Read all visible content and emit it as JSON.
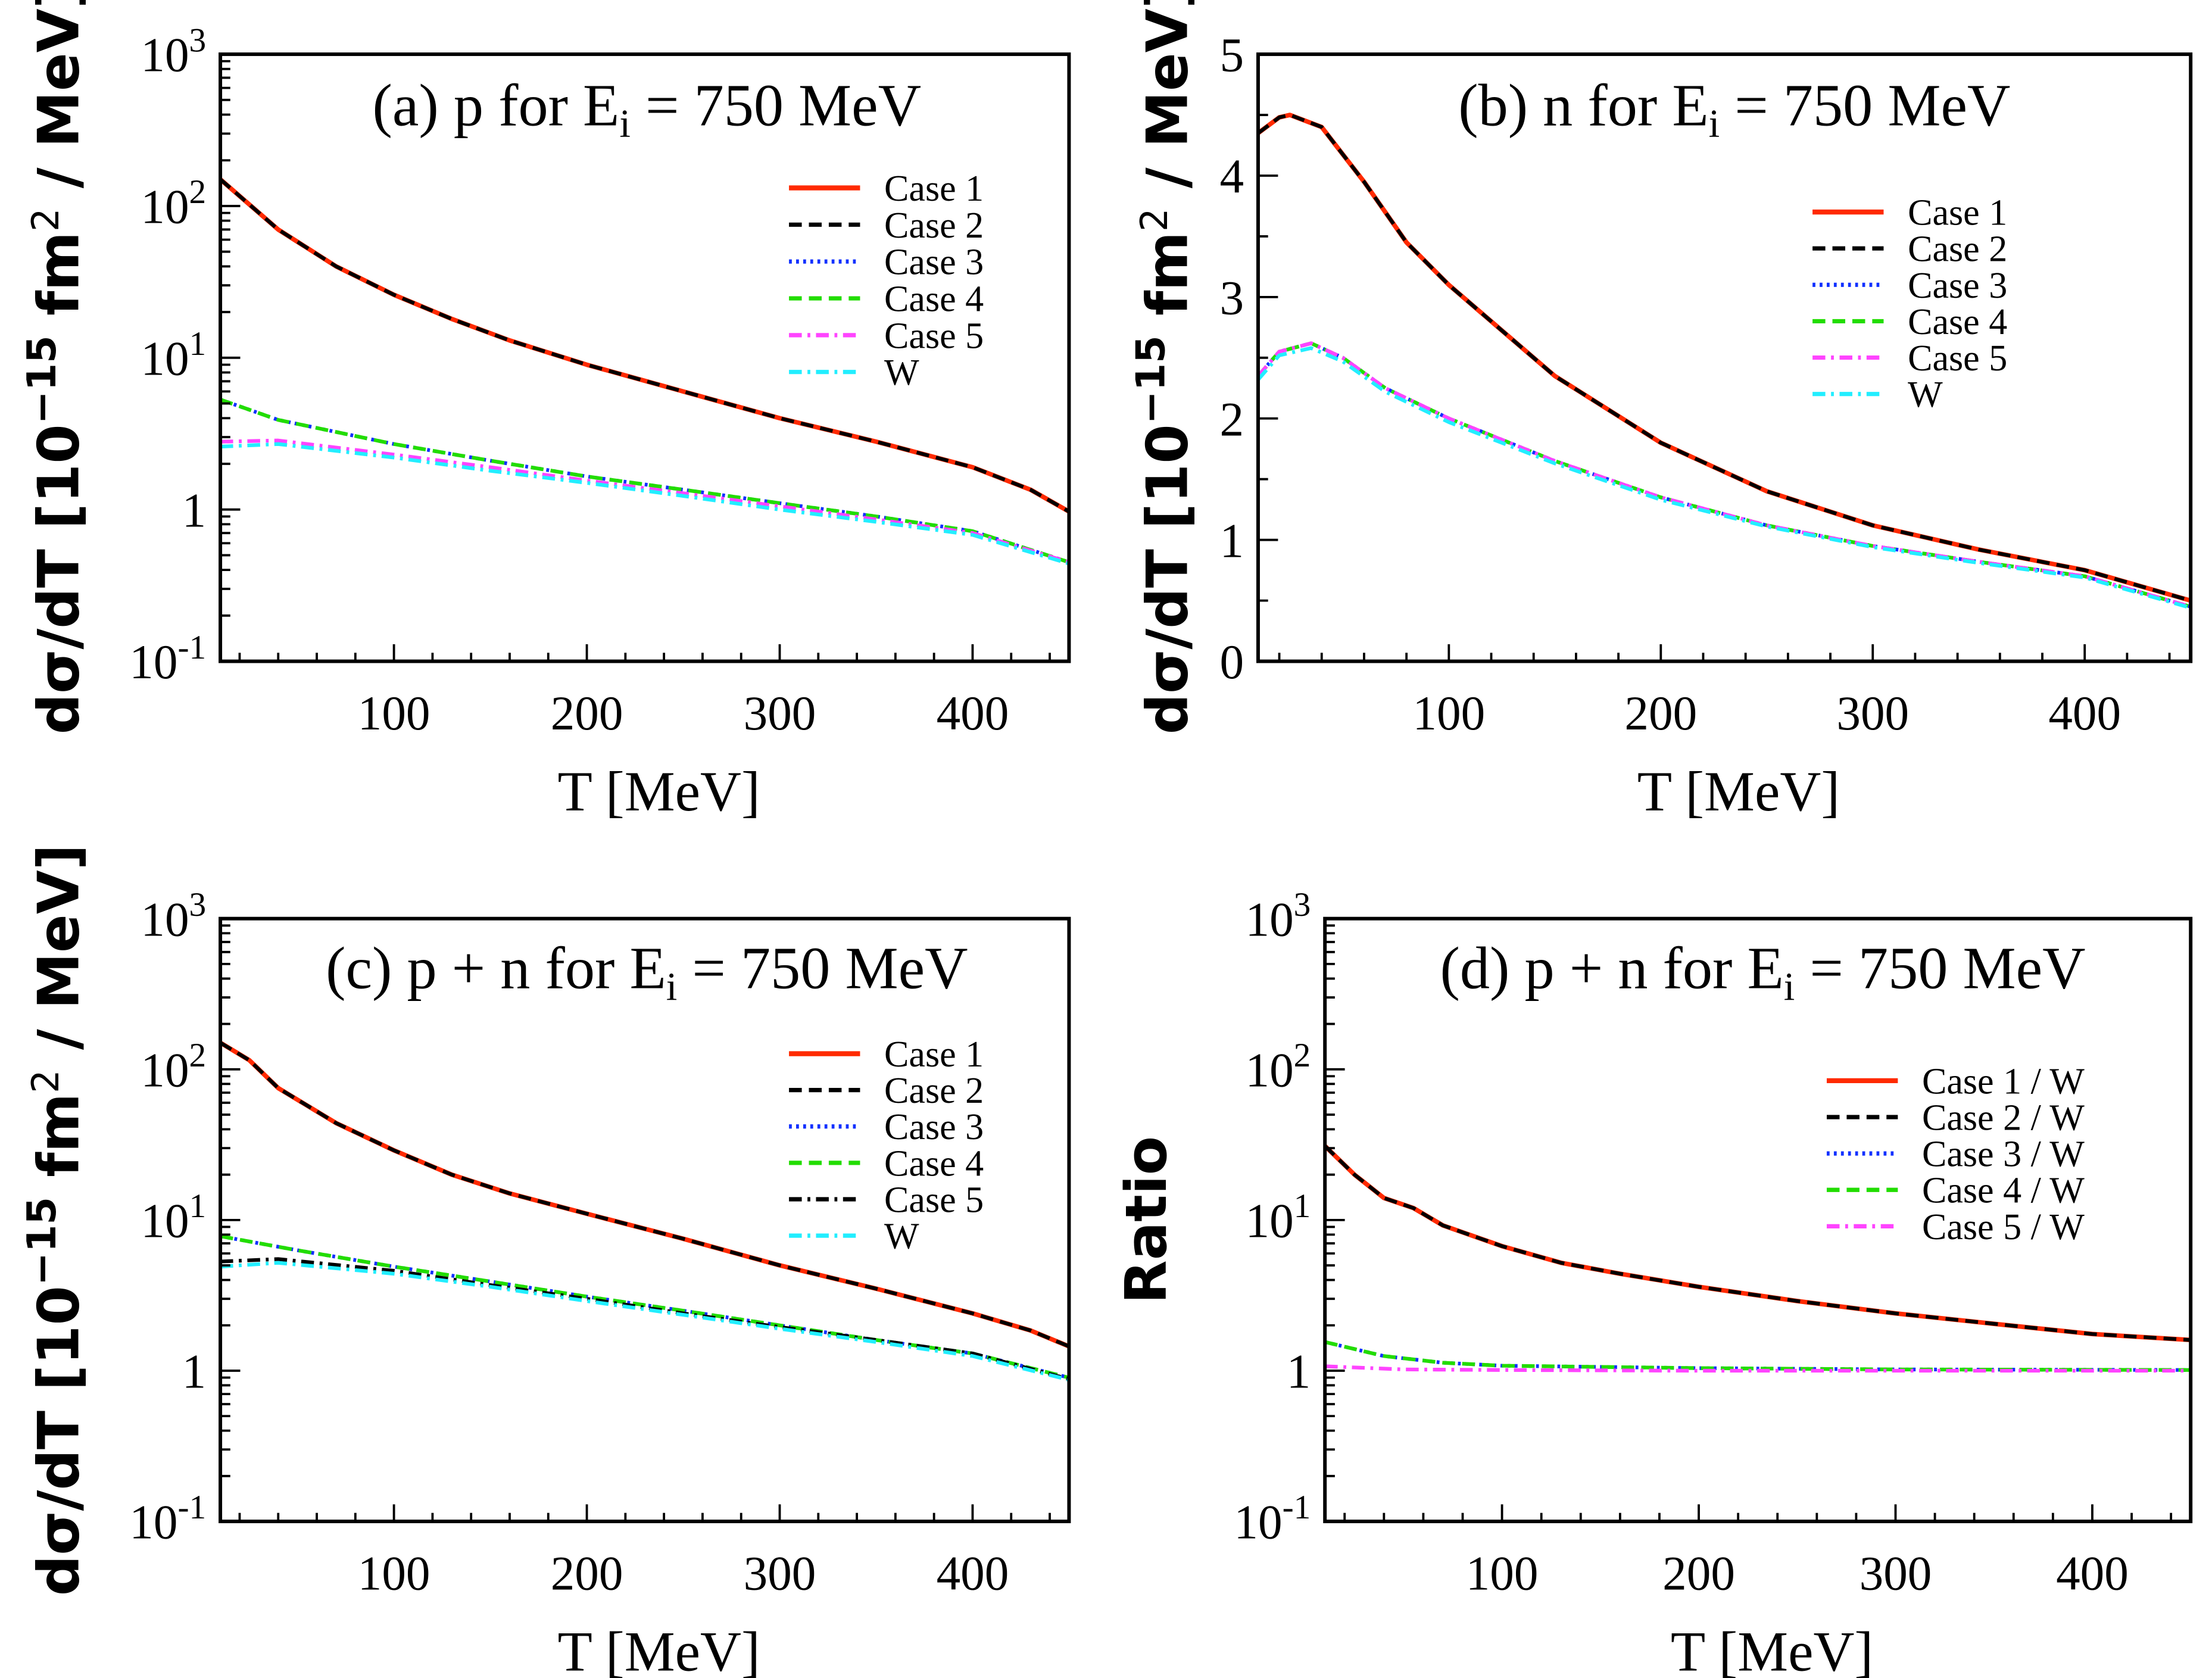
{
  "chart_data": [
    {
      "type": "line",
      "title": {
        "pre": "(a) p for E",
        "sub": "i",
        "post": " = 750 MeV"
      },
      "xlabel": "T [MeV]",
      "ylabel": {
        "pre": "dσ/dT [10",
        "sup": "−15",
        "mid": " fm",
        "sup2": "2",
        "post": " / MeV]"
      },
      "yscale": "log",
      "ylim": [
        0.1,
        1000
      ],
      "xlim": [
        10,
        450
      ],
      "xticks": [
        "100",
        "200",
        "300",
        "400"
      ],
      "yticks": [
        {
          "base": "10",
          "exp": "-1"
        },
        {
          "base": "1",
          "exp": ""
        },
        {
          "base": "10",
          "exp": "1"
        },
        {
          "base": "10",
          "exp": "2"
        },
        {
          "base": "10",
          "exp": "3"
        }
      ],
      "legend_position": "top-right",
      "series": [
        {
          "name": "Case 1",
          "color": "#ff2a00",
          "style": "solid",
          "x": [
            10,
            40,
            70,
            100,
            130,
            160,
            200,
            250,
            300,
            350,
            400,
            430,
            450
          ],
          "y": [
            150,
            70,
            40,
            26,
            18,
            13,
            9,
            6,
            4.0,
            2.8,
            1.9,
            1.35,
            0.97
          ]
        },
        {
          "name": "Case 2",
          "color": "#000000",
          "style": "dashed",
          "x": [
            10,
            40,
            70,
            100,
            130,
            160,
            200,
            250,
            300,
            350,
            400,
            430,
            450
          ],
          "y": [
            150,
            70,
            40,
            26,
            18,
            13,
            9,
            6,
            4.0,
            2.8,
            1.9,
            1.35,
            0.97
          ]
        },
        {
          "name": "Case 3",
          "color": "#1030ff",
          "style": "dotted",
          "x": [
            10,
            40,
            100,
            150,
            200,
            250,
            300,
            350,
            400,
            450
          ],
          "y": [
            5.3,
            3.9,
            2.7,
            2.1,
            1.65,
            1.35,
            1.1,
            0.9,
            0.72,
            0.45
          ]
        },
        {
          "name": "Case 4",
          "color": "#22dd00",
          "style": "dashed",
          "x": [
            10,
            40,
            100,
            150,
            200,
            250,
            300,
            350,
            400,
            450
          ],
          "y": [
            5.3,
            3.9,
            2.7,
            2.1,
            1.65,
            1.35,
            1.1,
            0.9,
            0.72,
            0.45
          ]
        },
        {
          "name": "Case 5",
          "color": "#ff44ff",
          "style": "dashdot",
          "x": [
            10,
            40,
            100,
            150,
            200,
            250,
            300,
            350,
            400,
            450
          ],
          "y": [
            2.8,
            2.85,
            2.3,
            1.9,
            1.55,
            1.28,
            1.05,
            0.86,
            0.7,
            0.45
          ]
        },
        {
          "name": "W",
          "color": "#22eeff",
          "style": "dashdot",
          "x": [
            10,
            40,
            100,
            150,
            200,
            250,
            300,
            350,
            400,
            450
          ],
          "y": [
            2.6,
            2.7,
            2.2,
            1.8,
            1.5,
            1.23,
            1.0,
            0.83,
            0.68,
            0.44
          ]
        }
      ]
    },
    {
      "type": "line",
      "title": {
        "pre": "(b) n for E",
        "sub": "i",
        "post": " = 750 MeV"
      },
      "xlabel": "T [MeV]",
      "ylabel": {
        "pre": "dσ/dT [10",
        "sup": "−15",
        "mid": " fm",
        "sup2": "2",
        "post": " / MeV]"
      },
      "yscale": "linear",
      "ylim": [
        0,
        5
      ],
      "xlim": [
        10,
        450
      ],
      "xticks": [
        "100",
        "200",
        "300",
        "400"
      ],
      "yticks": [
        {
          "base": "0",
          "exp": ""
        },
        {
          "base": "1",
          "exp": ""
        },
        {
          "base": "2",
          "exp": ""
        },
        {
          "base": "3",
          "exp": ""
        },
        {
          "base": "4",
          "exp": ""
        },
        {
          "base": "5",
          "exp": ""
        }
      ],
      "legend_position": "right",
      "series": [
        {
          "name": "Case 1",
          "color": "#ff2a00",
          "style": "solid",
          "x": [
            10,
            20,
            25,
            40,
            60,
            80,
            100,
            150,
            200,
            250,
            300,
            350,
            400,
            450
          ],
          "y": [
            4.35,
            4.48,
            4.5,
            4.4,
            3.95,
            3.45,
            3.1,
            2.35,
            1.8,
            1.4,
            1.12,
            0.92,
            0.75,
            0.5
          ]
        },
        {
          "name": "Case 2",
          "color": "#000000",
          "style": "dashed",
          "x": [
            10,
            20,
            25,
            40,
            60,
            80,
            100,
            150,
            200,
            250,
            300,
            350,
            400,
            450
          ],
          "y": [
            4.35,
            4.48,
            4.5,
            4.4,
            3.95,
            3.45,
            3.1,
            2.35,
            1.8,
            1.4,
            1.12,
            0.92,
            0.75,
            0.5
          ]
        },
        {
          "name": "Case 3",
          "color": "#1030ff",
          "style": "dotted",
          "x": [
            10,
            20,
            35,
            50,
            70,
            100,
            150,
            200,
            250,
            300,
            350,
            400,
            450
          ],
          "y": [
            2.35,
            2.55,
            2.62,
            2.5,
            2.25,
            2.0,
            1.65,
            1.35,
            1.12,
            0.95,
            0.82,
            0.7,
            0.45
          ]
        },
        {
          "name": "Case 4",
          "color": "#22dd00",
          "style": "dashed",
          "x": [
            10,
            20,
            35,
            50,
            70,
            100,
            150,
            200,
            250,
            300,
            350,
            400,
            450
          ],
          "y": [
            2.35,
            2.55,
            2.62,
            2.5,
            2.25,
            2.0,
            1.65,
            1.35,
            1.12,
            0.95,
            0.82,
            0.7,
            0.45
          ]
        },
        {
          "name": "Case 5",
          "color": "#ff44ff",
          "style": "dashdot",
          "x": [
            10,
            20,
            35,
            50,
            70,
            100,
            150,
            200,
            250,
            300,
            350,
            400,
            450
          ],
          "y": [
            2.35,
            2.55,
            2.62,
            2.5,
            2.25,
            2.0,
            1.65,
            1.35,
            1.12,
            0.95,
            0.82,
            0.7,
            0.45
          ]
        },
        {
          "name": "W",
          "color": "#22eeff",
          "style": "dashdot",
          "x": [
            10,
            20,
            35,
            50,
            70,
            100,
            150,
            200,
            250,
            300,
            350,
            400,
            450
          ],
          "y": [
            2.32,
            2.52,
            2.58,
            2.47,
            2.22,
            1.97,
            1.63,
            1.33,
            1.11,
            0.94,
            0.81,
            0.69,
            0.44
          ]
        }
      ]
    },
    {
      "type": "line",
      "title": {
        "pre": "(c) p + n for E",
        "sub": "i",
        "post": " = 750 MeV"
      },
      "xlabel": "T [MeV]",
      "ylabel": {
        "pre": "dσ/dT [10",
        "sup": "−15",
        "mid": " fm",
        "sup2": "2",
        "post": " / MeV]"
      },
      "yscale": "log",
      "ylim": [
        0.1,
        1000
      ],
      "xlim": [
        10,
        450
      ],
      "xticks": [
        "100",
        "200",
        "300",
        "400"
      ],
      "yticks": [
        {
          "base": "10",
          "exp": "-1"
        },
        {
          "base": "1",
          "exp": ""
        },
        {
          "base": "10",
          "exp": "1"
        },
        {
          "base": "10",
          "exp": "2"
        },
        {
          "base": "10",
          "exp": "3"
        }
      ],
      "legend_position": "top-right",
      "series": [
        {
          "name": "Case 1",
          "color": "#ff2a00",
          "style": "solid",
          "x": [
            10,
            25,
            40,
            70,
            100,
            130,
            160,
            200,
            250,
            300,
            350,
            400,
            430,
            450
          ],
          "y": [
            150,
            115,
            75,
            44,
            29,
            20,
            15,
            11,
            7.5,
            5,
            3.5,
            2.4,
            1.85,
            1.45
          ]
        },
        {
          "name": "Case 2",
          "color": "#000000",
          "style": "dashed",
          "x": [
            10,
            25,
            40,
            70,
            100,
            130,
            160,
            200,
            250,
            300,
            350,
            400,
            430,
            450
          ],
          "y": [
            150,
            115,
            75,
            44,
            29,
            20,
            15,
            11,
            7.5,
            5,
            3.5,
            2.4,
            1.85,
            1.45
          ]
        },
        {
          "name": "Case 3",
          "color": "#1030ff",
          "style": "dotted",
          "x": [
            10,
            50,
            100,
            150,
            200,
            250,
            300,
            350,
            400,
            450
          ],
          "y": [
            7.8,
            6.3,
            4.9,
            3.9,
            3.1,
            2.5,
            2.0,
            1.6,
            1.3,
            0.9
          ]
        },
        {
          "name": "Case 4",
          "color": "#22dd00",
          "style": "dashed",
          "x": [
            10,
            50,
            100,
            150,
            200,
            250,
            300,
            350,
            400,
            450
          ],
          "y": [
            7.8,
            6.3,
            4.9,
            3.9,
            3.1,
            2.5,
            2.0,
            1.6,
            1.3,
            0.9
          ]
        },
        {
          "name": "Case 5",
          "color": "#000000",
          "style": "dashdot",
          "x": [
            10,
            40,
            100,
            150,
            200,
            250,
            300,
            350,
            400,
            450
          ],
          "y": [
            5.3,
            5.5,
            4.6,
            3.7,
            3.0,
            2.4,
            1.95,
            1.6,
            1.3,
            0.88
          ]
        },
        {
          "name": "W",
          "color": "#22eeff",
          "style": "dashdot",
          "x": [
            10,
            40,
            100,
            150,
            200,
            250,
            300,
            350,
            400,
            450
          ],
          "y": [
            4.9,
            5.2,
            4.4,
            3.6,
            2.9,
            2.35,
            1.9,
            1.55,
            1.25,
            0.87
          ]
        }
      ]
    },
    {
      "type": "line",
      "title": {
        "pre": "(d) p + n for E",
        "sub": "i",
        "post": " = 750 MeV"
      },
      "xlabel": "T [MeV]",
      "ylabel": {
        "pre": "Ratio",
        "sup": "",
        "mid": "",
        "sup2": "",
        "post": ""
      },
      "yscale": "log",
      "ylim": [
        0.1,
        1000
      ],
      "xlim": [
        10,
        450
      ],
      "xticks": [
        "100",
        "200",
        "300",
        "400"
      ],
      "yticks": [
        {
          "base": "10",
          "exp": "-1"
        },
        {
          "base": "1",
          "exp": ""
        },
        {
          "base": "10",
          "exp": "1"
        },
        {
          "base": "10",
          "exp": "2"
        },
        {
          "base": "10",
          "exp": "3"
        }
      ],
      "legend_position": "right",
      "series": [
        {
          "name": "Case 1 / W",
          "color": "#ff2a00",
          "style": "solid",
          "x": [
            10,
            25,
            40,
            55,
            70,
            100,
            130,
            160,
            200,
            250,
            300,
            350,
            400,
            450
          ],
          "y": [
            31,
            20,
            14,
            12,
            9.2,
            6.7,
            5.2,
            4.4,
            3.6,
            2.9,
            2.4,
            2.05,
            1.75,
            1.6
          ]
        },
        {
          "name": "Case 2 / W",
          "color": "#000000",
          "style": "dashed",
          "x": [
            10,
            25,
            40,
            55,
            70,
            100,
            130,
            160,
            200,
            250,
            300,
            350,
            400,
            450
          ],
          "y": [
            31,
            20,
            14,
            12,
            9.2,
            6.7,
            5.2,
            4.4,
            3.6,
            2.9,
            2.4,
            2.05,
            1.75,
            1.6
          ]
        },
        {
          "name": "Case 3 / W",
          "color": "#1030ff",
          "style": "dotted",
          "x": [
            10,
            40,
            70,
            100,
            200,
            300,
            450
          ],
          "y": [
            1.55,
            1.25,
            1.13,
            1.08,
            1.04,
            1.02,
            1.01
          ]
        },
        {
          "name": "Case 4 / W",
          "color": "#22dd00",
          "style": "dashed",
          "x": [
            10,
            40,
            70,
            100,
            200,
            300,
            450
          ],
          "y": [
            1.55,
            1.25,
            1.13,
            1.08,
            1.04,
            1.02,
            1.01
          ]
        },
        {
          "name": "Case 5 / W",
          "color": "#ff44ff",
          "style": "dashdot",
          "x": [
            10,
            50,
            100,
            200,
            450
          ],
          "y": [
            1.07,
            1.02,
            1.01,
            1.0,
            1.0
          ]
        }
      ]
    }
  ]
}
